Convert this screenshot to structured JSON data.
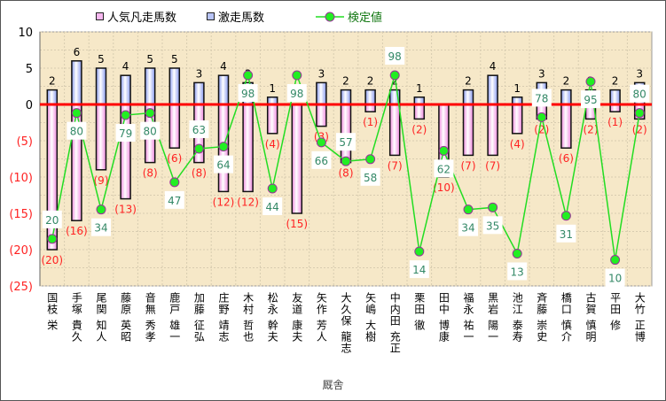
{
  "chart_data": {
    "type": "bar",
    "title": "",
    "xlabel": "厩舎",
    "ylabel": "",
    "ylim": [
      -25,
      10
    ],
    "yticks": [
      10,
      5,
      0,
      -5,
      -10,
      -15,
      -20,
      -25
    ],
    "ytick_labels": [
      "10",
      "5",
      "0",
      "(5)",
      "(10)",
      "(15)",
      "(20)",
      "(25)"
    ],
    "legend": [
      "人気凡走馬数",
      "激走馬数",
      "検定値"
    ],
    "legend_position": "top",
    "grid": true,
    "categories": [
      "国枝 栄",
      "手塚 貴久",
      "尾関 知人",
      "藤原 英昭",
      "音無 秀孝",
      "鹿戸 雄一",
      "加藤 征弘",
      "庄野 靖志",
      "木村 哲也",
      "松永 幹夫",
      "友道 康夫",
      "矢作 芳人",
      "大久保 龍志",
      "矢嶋 大樹",
      "中内田 充正",
      "栗田 徹",
      "田中 博康",
      "福永 祐一",
      "黒岩 陽一",
      "池江 泰寿",
      "斉藤 崇史",
      "橋口 慎介",
      "古賀 慎明",
      "平田 修",
      "大竹 正博"
    ],
    "series": [
      {
        "name": "人気凡走馬数",
        "type": "bar",
        "values": [
          -20,
          -16,
          -9,
          -13,
          -8,
          -6,
          -8,
          -12,
          -12,
          -4,
          -15,
          -3,
          -8,
          -1,
          -7,
          -2,
          -10,
          -7,
          -7,
          -4,
          -2,
          -6,
          -2,
          -1,
          -2
        ]
      },
      {
        "name": "激走馬数",
        "type": "bar",
        "values": [
          2,
          6,
          5,
          4,
          5,
          5,
          3,
          4,
          3,
          1,
          0,
          3,
          2,
          2,
          2,
          1,
          0,
          2,
          4,
          1,
          3,
          2,
          2,
          2,
          3
        ]
      },
      {
        "name": "検定値",
        "type": "line",
        "axis": "secondary-hidden",
        "values": [
          20,
          80,
          34,
          79,
          80,
          47,
          63,
          64,
          98,
          44,
          98,
          66,
          57,
          58,
          98,
          14,
          62,
          34,
          35,
          13,
          78,
          31,
          95,
          10,
          80
        ]
      }
    ],
    "colors": {
      "negative": "#f7b8f0",
      "positive": "#b8c4f7",
      "line": "#22dd22",
      "marker": "#22ee22",
      "marker_edge": "#993399",
      "zero_line": "#ff0000",
      "neg_label": "#ff2222",
      "line_label": "#338866",
      "plot_bg": "#f6e8c8"
    }
  }
}
